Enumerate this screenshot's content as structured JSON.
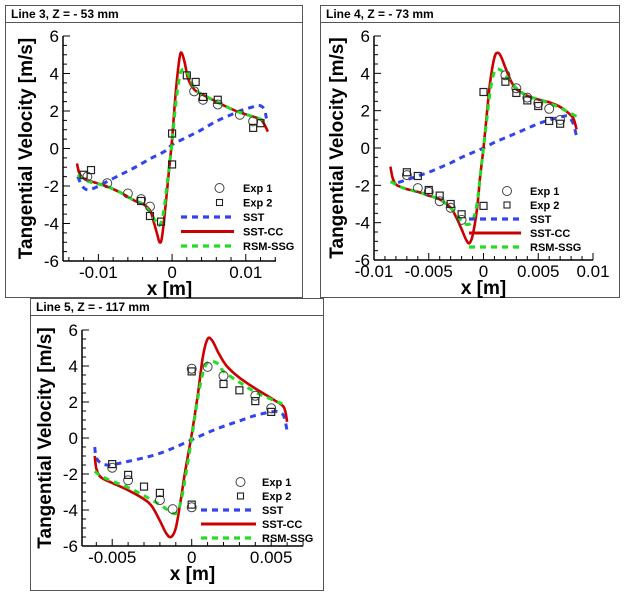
{
  "colors": {
    "sst": "#3344ee",
    "sst_cc": "#cc0000",
    "rsm_ssg": "#22dd22",
    "exp": "#444444"
  },
  "legend": [
    "Exp 1",
    "Exp 2",
    "SST",
    "SST-CC",
    "RSM-SSG"
  ],
  "chart_data": [
    {
      "type": "line",
      "title": "Line 3, Z = - 53 mm",
      "xlabel": "x [m]",
      "ylabel": "Tangential Velocity [m/s]",
      "xlim": [
        -0.0148,
        0.0141
      ],
      "ylim": [
        -6,
        6
      ],
      "xticks": [
        -0.01,
        0,
        0.01
      ],
      "xtick_labels": [
        "-0.01",
        "0",
        "0.01"
      ],
      "xminor_step": 0.002,
      "yticks": [
        -6,
        -4,
        -2,
        0,
        2,
        4,
        6
      ],
      "ytick_labels": [
        "-6",
        "-4",
        "-2",
        "0",
        "2",
        "4",
        "6"
      ],
      "yminor_step": 0.5,
      "legend_position": "bottom-right",
      "series": [
        {
          "name": "SST",
          "style": "dashed",
          "x": [
            -0.0128,
            -0.0122,
            -0.0115,
            -0.0105,
            -0.009,
            -0.007,
            -0.005,
            -0.003,
            -0.001,
            0,
            0.002,
            0.004,
            0.006,
            0.008,
            0.0095,
            0.0108,
            0.0118,
            0.0125,
            0.0128
          ],
          "y": [
            -1.5,
            -2.0,
            -2.2,
            -2.1,
            -1.8,
            -1.4,
            -1.0,
            -0.55,
            -0.15,
            0.2,
            0.6,
            1.0,
            1.45,
            1.8,
            2.05,
            2.2,
            2.3,
            2.1,
            1.6
          ]
        },
        {
          "name": "SST-CC",
          "style": "solid",
          "x": [
            -0.0129,
            -0.0126,
            -0.012,
            -0.011,
            -0.009,
            -0.007,
            -0.005,
            -0.004,
            -0.003,
            -0.0025,
            -0.002,
            -0.0017,
            -0.0014,
            -0.001,
            -0.0005,
            0,
            0.0005,
            0.001,
            0.0013,
            0.0017,
            0.0022,
            0.003,
            0.004,
            0.005,
            0.007,
            0.009,
            0.011,
            0.012,
            0.0125,
            0.013
          ],
          "y": [
            -0.8,
            -1.3,
            -1.6,
            -1.75,
            -2.0,
            -2.35,
            -2.8,
            -2.95,
            -3.3,
            -3.9,
            -4.6,
            -5.0,
            -4.8,
            -3.5,
            -1.5,
            0.5,
            3.0,
            4.8,
            5.1,
            4.6,
            3.7,
            3.15,
            2.9,
            2.7,
            2.3,
            1.95,
            1.7,
            1.55,
            1.3,
            0.9
          ]
        },
        {
          "name": "RSM-SSG",
          "style": "dashed",
          "x": [
            -0.0128,
            -0.012,
            -0.011,
            -0.009,
            -0.007,
            -0.005,
            -0.004,
            -0.003,
            -0.0022,
            -0.0017,
            -0.0012,
            -0.0008,
            -0.0004,
            0,
            0.0004,
            0.0008,
            0.0012,
            0.0018,
            0.0025,
            0.003,
            0.004,
            0.005,
            0.007,
            0.009,
            0.011,
            0.0125,
            0.013
          ],
          "y": [
            -1.4,
            -1.65,
            -1.8,
            -2.0,
            -2.35,
            -2.8,
            -2.95,
            -3.4,
            -3.9,
            -4.1,
            -3.5,
            -2.3,
            -1.0,
            0.3,
            2.0,
            3.3,
            4.1,
            4.2,
            3.7,
            3.2,
            2.9,
            2.7,
            2.3,
            1.95,
            1.7,
            1.5,
            1.45
          ]
        },
        {
          "name": "Exp 1",
          "style": "circle",
          "x": [
            -0.0115,
            -0.0088,
            -0.006,
            -0.0042,
            -0.003,
            0.003,
            0.0042,
            0.0062,
            0.0092,
            0.011
          ],
          "y": [
            -1.5,
            -1.85,
            -2.4,
            -2.7,
            -3.1,
            3.05,
            2.6,
            2.35,
            1.8,
            1.45
          ]
        },
        {
          "name": "Exp 2",
          "style": "square",
          "x": [
            -0.012,
            -0.011,
            -0.0042,
            -0.003,
            -0.0015,
            0,
            0,
            0.002,
            0.0032,
            0.0042,
            0.0062,
            0.011,
            0.012
          ],
          "y": [
            -1.4,
            -1.15,
            -2.8,
            -3.6,
            -3.9,
            0.8,
            -0.85,
            3.9,
            3.55,
            2.75,
            2.6,
            1.1,
            1.35
          ]
        }
      ]
    },
    {
      "type": "line",
      "title": "Line 4, Z = - 73 mm",
      "xlabel": "x [m]",
      "ylabel": "Tangential Velocity [m/s]",
      "xlim": [
        -0.01,
        0.01
      ],
      "ylim": [
        -6,
        6
      ],
      "xticks": [
        -0.01,
        -0.005,
        0,
        0.005,
        0.01
      ],
      "xtick_labels": [
        "-0.01",
        "-0.005",
        "0",
        "0.005",
        "0.01"
      ],
      "xminor_step": 0.001,
      "yticks": [
        -6,
        -4,
        -2,
        0,
        2,
        4,
        6
      ],
      "ytick_labels": [
        "-6",
        "-4",
        "-2",
        "0",
        "2",
        "4",
        "6"
      ],
      "yminor_step": 0.5,
      "legend_position": "bottom-right",
      "series": [
        {
          "name": "SST",
          "style": "dashed",
          "x": [
            -0.0078,
            -0.007,
            -0.006,
            -0.005,
            -0.004,
            -0.003,
            -0.002,
            -0.001,
            0,
            0.001,
            0.002,
            0.003,
            0.004,
            0.005,
            0.006,
            0.007,
            0.0077,
            0.0082,
            0.0085
          ],
          "y": [
            -1.85,
            -1.7,
            -1.5,
            -1.3,
            -1.05,
            -0.8,
            -0.5,
            -0.25,
            0,
            0.3,
            0.55,
            0.8,
            1.05,
            1.3,
            1.5,
            1.65,
            1.7,
            1.3,
            0.6
          ]
        },
        {
          "name": "SST-CC",
          "style": "solid",
          "x": [
            -0.0085,
            -0.0083,
            -0.008,
            -0.0075,
            -0.007,
            -0.006,
            -0.005,
            -0.004,
            -0.003,
            -0.0025,
            -0.002,
            -0.0016,
            -0.0013,
            -0.001,
            -0.0006,
            -0.0003,
            0,
            0.0003,
            0.0006,
            0.001,
            0.0013,
            0.0016,
            0.002,
            0.0025,
            0.003,
            0.004,
            0.005,
            0.006,
            0.007,
            0.0077,
            0.0082,
            0.0085
          ],
          "y": [
            -1.0,
            -1.6,
            -1.95,
            -2.1,
            -2.2,
            -2.35,
            -2.55,
            -2.75,
            -3.2,
            -3.7,
            -4.35,
            -4.9,
            -5.1,
            -4.7,
            -3.3,
            -1.5,
            0,
            1.8,
            3.5,
            4.85,
            5.1,
            4.9,
            4.3,
            3.6,
            3.15,
            2.8,
            2.6,
            2.45,
            2.2,
            1.9,
            1.6,
            1.0
          ]
        },
        {
          "name": "RSM-SSG",
          "style": "dashed",
          "x": [
            -0.0085,
            -0.008,
            -0.0075,
            -0.007,
            -0.006,
            -0.005,
            -0.004,
            -0.003,
            -0.0025,
            -0.002,
            -0.0015,
            -0.001,
            -0.0006,
            -0.0003,
            0,
            0.0003,
            0.0006,
            0.001,
            0.0015,
            0.002,
            0.003,
            0.004,
            0.005,
            0.006,
            0.007,
            0.0078,
            0.0085
          ],
          "y": [
            -1.8,
            -1.95,
            -2.1,
            -2.2,
            -2.35,
            -2.55,
            -2.75,
            -3.2,
            -3.55,
            -3.9,
            -4.1,
            -3.9,
            -3.0,
            -1.5,
            0,
            1.5,
            3.0,
            4.1,
            4.2,
            3.9,
            3.2,
            2.8,
            2.6,
            2.4,
            2.15,
            1.9,
            1.7
          ]
        },
        {
          "name": "Exp 1",
          "style": "circle",
          "x": [
            -0.007,
            -0.006,
            -0.005,
            -0.004,
            -0.003,
            -0.002,
            0.002,
            0.003,
            0.004,
            0.005,
            0.006,
            0.007
          ],
          "y": [
            -1.45,
            -2.15,
            -2.35,
            -2.85,
            -3.2,
            -3.85,
            3.9,
            3.2,
            2.7,
            2.4,
            2.1,
            1.5
          ]
        },
        {
          "name": "Exp 2",
          "style": "square",
          "x": [
            -0.007,
            -0.006,
            -0.005,
            -0.004,
            -0.003,
            -0.002,
            0,
            0,
            0.002,
            0.003,
            0.004,
            0.005,
            0.006,
            0.007
          ],
          "y": [
            -1.3,
            -1.5,
            -2.25,
            -2.55,
            -3.0,
            -3.55,
            -3.1,
            3.0,
            3.55,
            2.95,
            2.55,
            2.25,
            1.45,
            1.3
          ]
        }
      ]
    },
    {
      "type": "line",
      "title": "Line 5, Z = - 117 mm",
      "xlabel": "x [m]",
      "ylabel": "Tangential Velocity [m/s]",
      "xlim": [
        -0.0069,
        0.007
      ],
      "ylim": [
        -6,
        6
      ],
      "xticks": [
        -0.005,
        0,
        0.005
      ],
      "xtick_labels": [
        "-0.005",
        "0",
        "0.005"
      ],
      "xminor_step": 0.001,
      "yticks": [
        -6,
        -4,
        -2,
        0,
        2,
        4,
        6
      ],
      "ytick_labels": [
        "-6",
        "-4",
        "-2",
        "0",
        "2",
        "4",
        "6"
      ],
      "yminor_step": 0.5,
      "legend_position": "bottom-right",
      "series": [
        {
          "name": "SST",
          "style": "dashed",
          "x": [
            -0.0061,
            -0.006,
            -0.0057,
            -0.0053,
            -0.0048,
            -0.004,
            -0.003,
            -0.002,
            -0.001,
            0,
            0.001,
            0.002,
            0.003,
            0.004,
            0.005,
            0.0055,
            0.0058,
            0.006
          ],
          "y": [
            -0.5,
            -1.1,
            -1.4,
            -1.5,
            -1.45,
            -1.3,
            -1.1,
            -0.85,
            -0.5,
            -0.1,
            0.3,
            0.65,
            0.95,
            1.25,
            1.45,
            1.45,
            1.2,
            0.4
          ]
        },
        {
          "name": "SST-CC",
          "style": "solid",
          "x": [
            -0.0061,
            -0.006,
            -0.0058,
            -0.0055,
            -0.005,
            -0.004,
            -0.003,
            -0.0025,
            -0.002,
            -0.0016,
            -0.0013,
            -0.001,
            -0.0007,
            -0.0004,
            0,
            0.0004,
            0.0007,
            0.001,
            0.0013,
            0.0017,
            0.0022,
            0.003,
            0.004,
            0.0052,
            0.0058,
            0.006
          ],
          "y": [
            -1.0,
            -1.7,
            -2.1,
            -2.3,
            -2.5,
            -2.9,
            -3.4,
            -3.8,
            -4.6,
            -5.3,
            -5.5,
            -5.0,
            -3.5,
            -1.8,
            0.2,
            2.5,
            4.5,
            5.5,
            5.4,
            4.7,
            4.0,
            3.35,
            2.75,
            2.1,
            1.7,
            0.9
          ]
        },
        {
          "name": "RSM-SSG",
          "style": "dashed",
          "x": [
            -0.0061,
            -0.0058,
            -0.0055,
            -0.005,
            -0.004,
            -0.003,
            -0.002,
            -0.0015,
            -0.001,
            -0.0007,
            -0.0004,
            0,
            0.0004,
            0.0008,
            0.0012,
            0.0017,
            0.002,
            0.003,
            0.004,
            0.005,
            0.0057
          ],
          "y": [
            -1.85,
            -2.05,
            -2.2,
            -2.4,
            -2.75,
            -3.2,
            -3.7,
            -4.0,
            -4.2,
            -3.6,
            -2.2,
            0,
            2.3,
            3.9,
            4.25,
            4.1,
            3.7,
            3.1,
            2.55,
            2.15,
            1.9
          ]
        },
        {
          "name": "Exp 1",
          "style": "circle",
          "x": [
            -0.005,
            -0.004,
            -0.002,
            -0.0012,
            0,
            0,
            0.001,
            0.002,
            0.004,
            0.005
          ],
          "y": [
            -1.65,
            -2.35,
            -3.45,
            -3.95,
            -3.85,
            3.85,
            3.95,
            3.45,
            2.35,
            1.65
          ]
        },
        {
          "name": "Exp 2",
          "style": "square",
          "x": [
            -0.005,
            -0.004,
            -0.003,
            -0.002,
            0,
            0,
            0.002,
            0.003,
            0.004,
            0.005
          ],
          "y": [
            -1.45,
            -2.05,
            -2.7,
            -3.05,
            -3.7,
            3.7,
            3.0,
            2.65,
            2.05,
            1.45
          ]
        }
      ]
    }
  ]
}
